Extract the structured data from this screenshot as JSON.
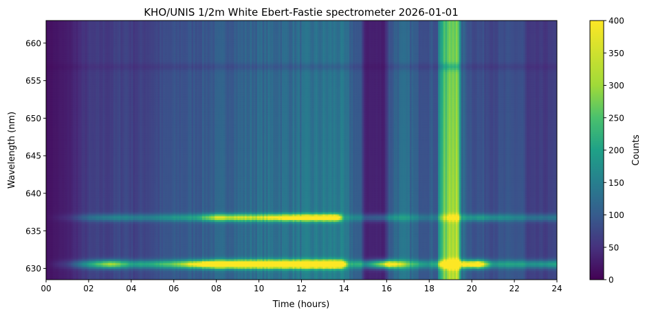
{
  "chart_data": {
    "type": "heatmap",
    "title": "KHO/UNIS 1/2m White Ebert-Fastie spectrometer 2026-01-01",
    "xlabel": "Time (hours)",
    "ylabel": "Wavelength (nm)",
    "colorbar_label": "Counts",
    "colormap": "viridis",
    "xlim": [
      0,
      24
    ],
    "ylim": [
      628.5,
      663
    ],
    "clim": [
      0,
      400
    ],
    "x_ticks": [
      0,
      2,
      4,
      6,
      8,
      10,
      12,
      14,
      16,
      18,
      20,
      22,
      24
    ],
    "x_tick_labels": [
      "00",
      "02",
      "04",
      "06",
      "08",
      "10",
      "12",
      "14",
      "16",
      "18",
      "20",
      "22",
      "24"
    ],
    "y_ticks": [
      630,
      635,
      640,
      645,
      650,
      655,
      660
    ],
    "colorbar_ticks": [
      0,
      50,
      100,
      150,
      200,
      250,
      300,
      350,
      400
    ],
    "emission_lines_nm": [
      630.6,
      636.8
    ],
    "absorption_band_nm": 656.9,
    "background_counts": [
      [
        0,
        20
      ],
      [
        1,
        35
      ],
      [
        2,
        75
      ],
      [
        3,
        80
      ],
      [
        3.8,
        95
      ],
      [
        4.1,
        80
      ],
      [
        6,
        110
      ],
      [
        8,
        130
      ],
      [
        10,
        150
      ],
      [
        12,
        160
      ],
      [
        13.8,
        175
      ],
      [
        14.8,
        110
      ],
      [
        15,
        40
      ],
      [
        15.9,
        40
      ],
      [
        16.1,
        110
      ],
      [
        16.5,
        150
      ],
      [
        17,
        150
      ],
      [
        17.5,
        120
      ],
      [
        18.4,
        120
      ],
      [
        18.5,
        260
      ],
      [
        19.3,
        400
      ],
      [
        19.5,
        150
      ],
      [
        20,
        110
      ],
      [
        21,
        100
      ],
      [
        22.4,
        110
      ],
      [
        22.6,
        70
      ],
      [
        24,
        80
      ]
    ],
    "line_630_counts": [
      [
        0,
        0
      ],
      [
        1,
        40
      ],
      [
        2,
        150
      ],
      [
        3,
        280
      ],
      [
        4,
        150
      ],
      [
        5,
        160
      ],
      [
        6,
        200
      ],
      [
        7,
        300
      ],
      [
        8,
        420
      ],
      [
        10,
        420
      ],
      [
        11,
        430
      ],
      [
        13.8,
        440
      ],
      [
        14.2,
        120
      ],
      [
        15,
        150
      ],
      [
        16,
        350
      ],
      [
        17,
        160
      ],
      [
        18,
        100
      ],
      [
        20.3,
        380
      ],
      [
        21,
        120
      ],
      [
        23,
        130
      ],
      [
        24,
        150
      ]
    ],
    "line_636_counts": [
      [
        0,
        0
      ],
      [
        1,
        20
      ],
      [
        2,
        70
      ],
      [
        3,
        100
      ],
      [
        5,
        90
      ],
      [
        7,
        120
      ],
      [
        8,
        250
      ],
      [
        10,
        230
      ],
      [
        11.5,
        300
      ],
      [
        13.7,
        320
      ],
      [
        14,
        60
      ],
      [
        16,
        90
      ],
      [
        18,
        50
      ],
      [
        20.4,
        120
      ],
      [
        22,
        80
      ],
      [
        24,
        80
      ]
    ]
  }
}
